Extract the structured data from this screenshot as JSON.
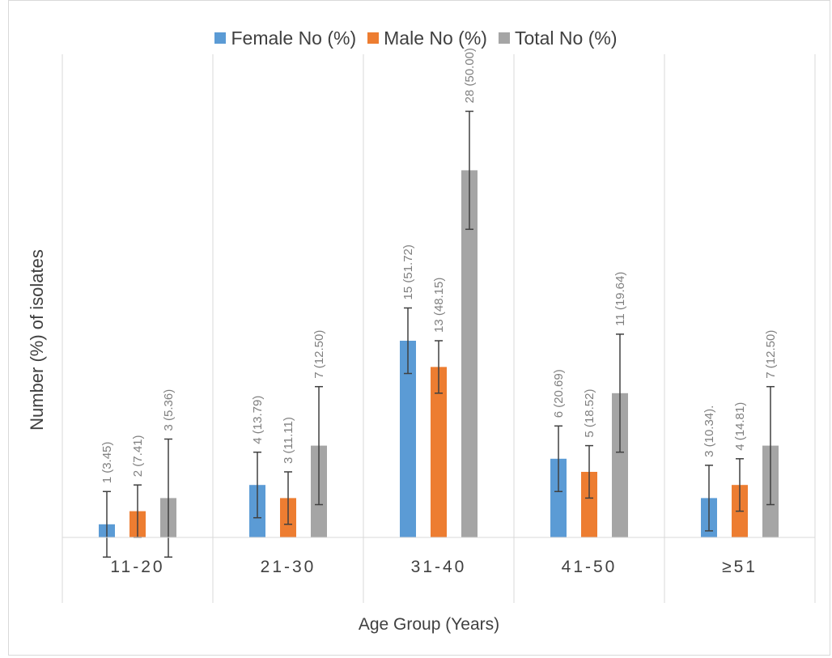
{
  "chart_data": {
    "type": "bar",
    "title": "",
    "xlabel": "Age Group (Years)",
    "ylabel": "Number (%) of isolates",
    "categories": [
      "11-20",
      "21-30",
      "31-40",
      "41-50",
      "≥51"
    ],
    "ylim": [
      0,
      28
    ],
    "grid": "vertical category separators",
    "legend_position": "top",
    "series": [
      {
        "name": "Female No (%)",
        "color": "#5b9bd5",
        "values": [
          1,
          4,
          15,
          6,
          3
        ],
        "error": [
          2.5,
          2.5,
          2.5,
          2.5,
          2.5
        ],
        "labels": [
          "1 (3.45)",
          "4 (13.79)",
          "15 (51.72)",
          "6 (20.69)",
          "3 (10.34)."
        ]
      },
      {
        "name": "Male No (%)",
        "color": "#ed7d31",
        "values": [
          2,
          3,
          13,
          5,
          4
        ],
        "error": [
          2,
          2,
          2,
          2,
          2
        ],
        "labels": [
          "2 (7.41)",
          "3 (11.11)",
          "13 (48.15)",
          "5 (18.52)",
          "4 (14.81)"
        ]
      },
      {
        "name": "Total No (%)",
        "color": "#a5a5a5",
        "values": [
          3,
          7,
          28,
          11,
          7
        ],
        "error": [
          4.5,
          4.5,
          4.5,
          4.5,
          4.5
        ],
        "labels": [
          "3 (5.36)",
          "7 (12.50)",
          "28 (50.00)",
          "11 (19.64)",
          "7 (12.50)"
        ]
      }
    ]
  }
}
